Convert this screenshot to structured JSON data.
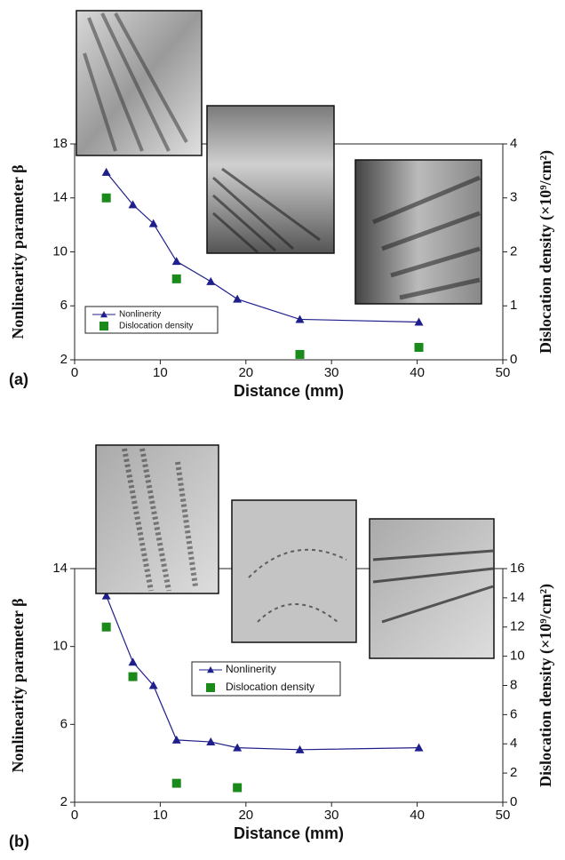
{
  "chart_data": [
    {
      "type": "line",
      "panel_label": "(a)",
      "x_label": "Distance (mm)",
      "y_label": "Nonlinearity parameter β",
      "y2_label": "Dislocation density (×10⁹/cm²)",
      "xlim": [
        0,
        50
      ],
      "xticks": [
        0,
        10,
        20,
        30,
        40,
        50
      ],
      "ylim": [
        2,
        18
      ],
      "yticks": [
        2,
        6,
        10,
        14,
        18
      ],
      "y2lim": [
        0,
        4
      ],
      "y2ticks": [
        0,
        1,
        2,
        3,
        4
      ],
      "legend": "lower left",
      "series": [
        {
          "name": "Nonlinerity",
          "color": "#1f1f8c",
          "mode": "line",
          "x": [
            3.7,
            6.8,
            9.2,
            11.9,
            15.9,
            19,
            26.3,
            40.2
          ],
          "values": [
            15.9,
            13.5,
            12.1,
            9.3,
            7.8,
            6.5,
            5.0,
            4.8
          ]
        },
        {
          "name": "Dislocation density",
          "color": "#1a8a1a",
          "mode": "scatter",
          "axis": "y2",
          "x": [
            3.7,
            11.9,
            26.3,
            40.2
          ],
          "values": [
            3.0,
            1.5,
            0.1,
            0.23
          ]
        }
      ]
    },
    {
      "type": "line",
      "panel_label": "(b)",
      "x_label": "Distance (mm)",
      "y_label": "Nonlinearity parameter β",
      "y2_label": "Dislocation density (×10⁹/cm²)",
      "xlim": [
        0,
        50
      ],
      "xticks": [
        0,
        10,
        20,
        30,
        40,
        50
      ],
      "ylim": [
        2,
        14
      ],
      "yticks": [
        2,
        6,
        10,
        14
      ],
      "y2lim": [
        0,
        16
      ],
      "y2ticks": [
        0,
        2,
        4,
        6,
        8,
        10,
        12,
        14,
        16
      ],
      "legend": "center",
      "series": [
        {
          "name": "Nonlinerity",
          "color": "#1f1f8c",
          "mode": "line",
          "x": [
            3.7,
            6.8,
            9.2,
            11.9,
            15.9,
            19,
            26.3,
            40.2
          ],
          "values": [
            12.6,
            9.2,
            8.0,
            5.2,
            5.1,
            4.8,
            4.7,
            4.8
          ]
        },
        {
          "name": "Dislocation density",
          "color": "#1a8a1a",
          "mode": "scatter",
          "axis": "y2",
          "x": [
            3.7,
            6.8,
            11.9,
            19
          ],
          "values": [
            12,
            8.6,
            1.3,
            1.0
          ]
        }
      ]
    }
  ]
}
